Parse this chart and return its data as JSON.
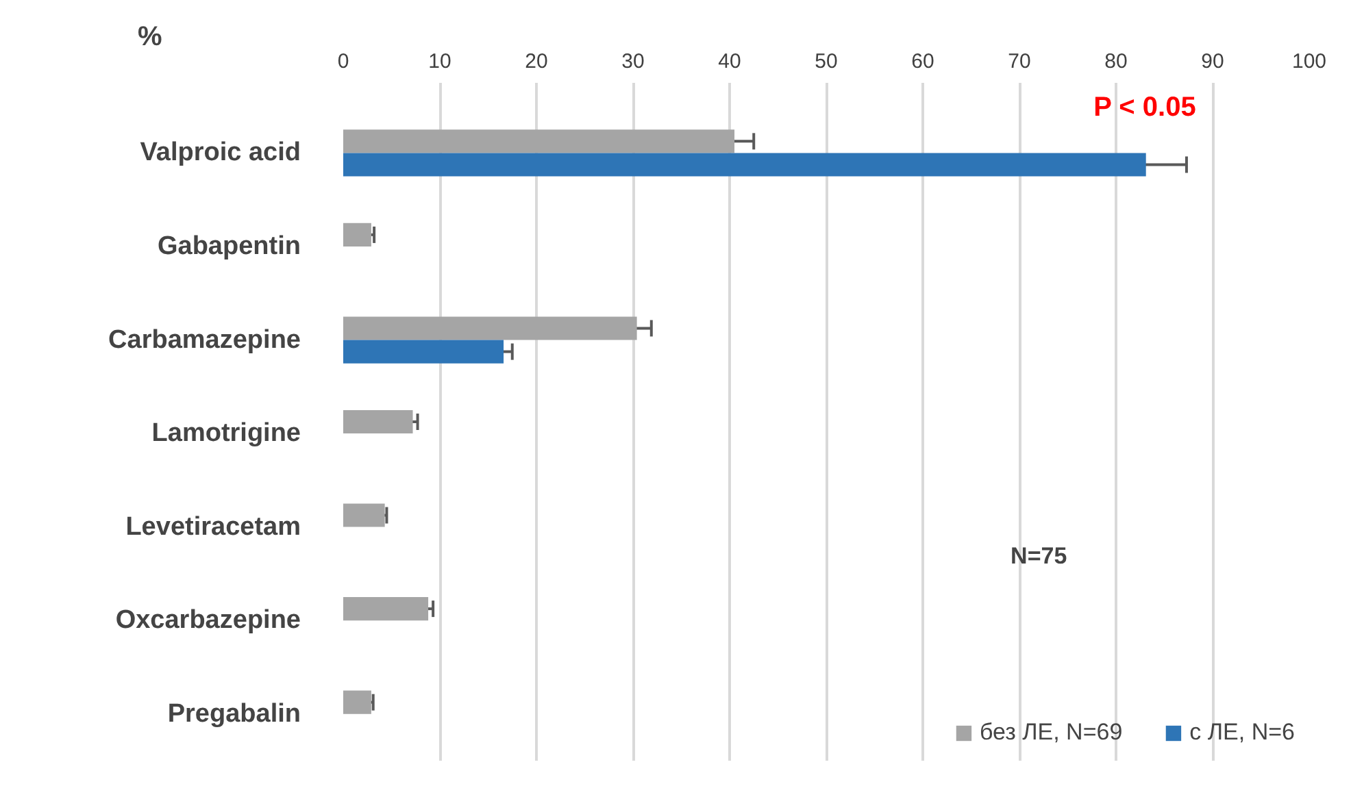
{
  "chart_data": {
    "type": "bar",
    "orientation": "horizontal",
    "xlabel": "%",
    "categories": [
      "Valproic acid",
      "Gabapentin",
      "Carbamazepine",
      "Lamotrigine",
      "Levetiracetam",
      "Oxcarbazepine",
      "Pregabalin"
    ],
    "series": [
      {
        "name": "без ЛЕ, N=69",
        "color": "#a5a5a5",
        "values": [
          40.5,
          2.9,
          30.4,
          7.2,
          4.3,
          8.8,
          2.9
        ],
        "errors": [
          2,
          0.3,
          1.5,
          0.5,
          0.2,
          0.5,
          0.2
        ]
      },
      {
        "name": "с ЛЕ, N=6",
        "color": "#2e75b6",
        "values": [
          83.1,
          null,
          16.6,
          null,
          null,
          null,
          null
        ],
        "errors": [
          4.2,
          null,
          0.9,
          null,
          null,
          null,
          null
        ]
      }
    ],
    "xlim": [
      0,
      100
    ],
    "xticks": [
      0,
      10,
      20,
      30,
      40,
      50,
      60,
      70,
      80,
      90,
      100
    ],
    "grid": "x",
    "legend": "bottom right",
    "annotations": [
      {
        "text": "P < 0.05",
        "x": 83,
        "y": "Valproic acid"
      },
      "N=75"
    ]
  }
}
